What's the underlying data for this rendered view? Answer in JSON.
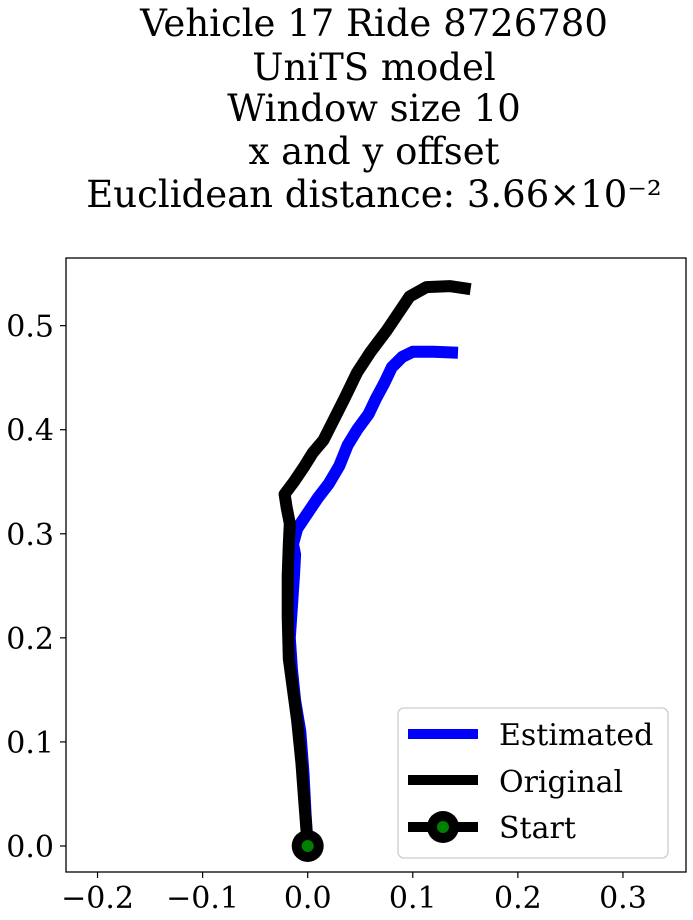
{
  "chart_data": {
    "type": "line",
    "title_lines": [
      "Vehicle 17 Ride 8726780",
      "UniTS model",
      "Window size 10",
      "x and y offset",
      "Euclidean distance: 3.66×10⁻²"
    ],
    "xlabel": "",
    "ylabel": "",
    "xlim": [
      -0.23,
      0.36
    ],
    "ylim": [
      -0.025,
      0.565
    ],
    "xticks": [
      -0.2,
      -0.1,
      0.0,
      0.1,
      0.2,
      0.3
    ],
    "xtick_labels": [
      "−0.2",
      "−0.1",
      "0.0",
      "0.1",
      "0.2",
      "0.3"
    ],
    "yticks": [
      0.0,
      0.1,
      0.2,
      0.3,
      0.4,
      0.5
    ],
    "ytick_labels": [
      "0.0",
      "0.1",
      "0.2",
      "0.3",
      "0.4",
      "0.5"
    ],
    "grid": false,
    "legend_position": "lower-right",
    "series": [
      {
        "name": "Estimated",
        "color": "#0000ff",
        "points": [
          [
            0.0,
            0.0
          ],
          [
            -0.002,
            0.03
          ],
          [
            -0.004,
            0.07
          ],
          [
            -0.007,
            0.11
          ],
          [
            -0.012,
            0.14
          ],
          [
            -0.015,
            0.17
          ],
          [
            -0.017,
            0.2
          ],
          [
            -0.015,
            0.23
          ],
          [
            -0.013,
            0.26
          ],
          [
            -0.012,
            0.28
          ],
          [
            -0.014,
            0.29
          ],
          [
            -0.01,
            0.305
          ],
          [
            0.0,
            0.32
          ],
          [
            0.01,
            0.335
          ],
          [
            0.02,
            0.348
          ],
          [
            0.03,
            0.365
          ],
          [
            0.038,
            0.385
          ],
          [
            0.047,
            0.4
          ],
          [
            0.058,
            0.415
          ],
          [
            0.065,
            0.43
          ],
          [
            0.073,
            0.445
          ],
          [
            0.08,
            0.46
          ],
          [
            0.09,
            0.47
          ],
          [
            0.1,
            0.475
          ],
          [
            0.12,
            0.475
          ],
          [
            0.143,
            0.474
          ]
        ]
      },
      {
        "name": "Original",
        "color": "#000000",
        "points": [
          [
            0.0,
            0.0
          ],
          [
            -0.003,
            0.04
          ],
          [
            -0.006,
            0.08
          ],
          [
            -0.01,
            0.12
          ],
          [
            -0.014,
            0.15
          ],
          [
            -0.018,
            0.18
          ],
          [
            -0.019,
            0.22
          ],
          [
            -0.019,
            0.26
          ],
          [
            -0.018,
            0.29
          ],
          [
            -0.017,
            0.31
          ],
          [
            -0.02,
            0.325
          ],
          [
            -0.022,
            0.338
          ],
          [
            -0.013,
            0.35
          ],
          [
            -0.003,
            0.365
          ],
          [
            0.005,
            0.378
          ],
          [
            0.015,
            0.39
          ],
          [
            0.025,
            0.41
          ],
          [
            0.035,
            0.43
          ],
          [
            0.047,
            0.455
          ],
          [
            0.06,
            0.475
          ],
          [
            0.075,
            0.495
          ],
          [
            0.085,
            0.51
          ],
          [
            0.097,
            0.528
          ],
          [
            0.113,
            0.537
          ],
          [
            0.135,
            0.538
          ],
          [
            0.155,
            0.535
          ]
        ]
      }
    ],
    "start_point": {
      "name": "Start",
      "x": 0.0,
      "y": 0.0,
      "marker_color": "#008000",
      "edge_color": "#000000"
    }
  }
}
